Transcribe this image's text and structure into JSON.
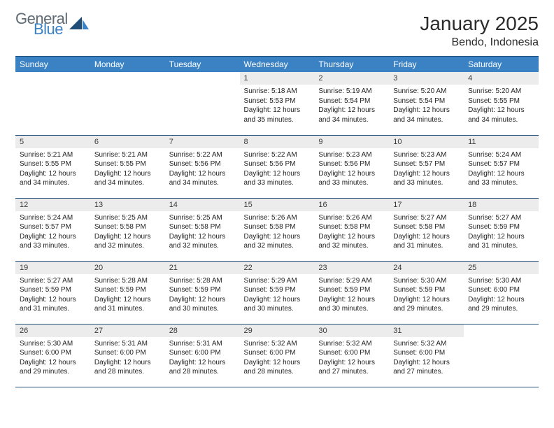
{
  "brand": {
    "part1": "General",
    "part2": "Blue"
  },
  "title": "January 2025",
  "location": "Bendo, Indonesia",
  "colors": {
    "header_bg": "#3b82c4",
    "header_border": "#1f4e79",
    "daynum_bg": "#ececec",
    "text": "#222222",
    "brand_gray": "#5f6a72",
    "brand_blue": "#3b82c4"
  },
  "dayHeaders": [
    "Sunday",
    "Monday",
    "Tuesday",
    "Wednesday",
    "Thursday",
    "Friday",
    "Saturday"
  ],
  "weeks": [
    [
      {
        "n": "",
        "sr": "",
        "ss": "",
        "dl": ""
      },
      {
        "n": "",
        "sr": "",
        "ss": "",
        "dl": ""
      },
      {
        "n": "",
        "sr": "",
        "ss": "",
        "dl": ""
      },
      {
        "n": "1",
        "sr": "5:18 AM",
        "ss": "5:53 PM",
        "dl": "12 hours and 35 minutes."
      },
      {
        "n": "2",
        "sr": "5:19 AM",
        "ss": "5:54 PM",
        "dl": "12 hours and 34 minutes."
      },
      {
        "n": "3",
        "sr": "5:20 AM",
        "ss": "5:54 PM",
        "dl": "12 hours and 34 minutes."
      },
      {
        "n": "4",
        "sr": "5:20 AM",
        "ss": "5:55 PM",
        "dl": "12 hours and 34 minutes."
      }
    ],
    [
      {
        "n": "5",
        "sr": "5:21 AM",
        "ss": "5:55 PM",
        "dl": "12 hours and 34 minutes."
      },
      {
        "n": "6",
        "sr": "5:21 AM",
        "ss": "5:55 PM",
        "dl": "12 hours and 34 minutes."
      },
      {
        "n": "7",
        "sr": "5:22 AM",
        "ss": "5:56 PM",
        "dl": "12 hours and 34 minutes."
      },
      {
        "n": "8",
        "sr": "5:22 AM",
        "ss": "5:56 PM",
        "dl": "12 hours and 33 minutes."
      },
      {
        "n": "9",
        "sr": "5:23 AM",
        "ss": "5:56 PM",
        "dl": "12 hours and 33 minutes."
      },
      {
        "n": "10",
        "sr": "5:23 AM",
        "ss": "5:57 PM",
        "dl": "12 hours and 33 minutes."
      },
      {
        "n": "11",
        "sr": "5:24 AM",
        "ss": "5:57 PM",
        "dl": "12 hours and 33 minutes."
      }
    ],
    [
      {
        "n": "12",
        "sr": "5:24 AM",
        "ss": "5:57 PM",
        "dl": "12 hours and 33 minutes."
      },
      {
        "n": "13",
        "sr": "5:25 AM",
        "ss": "5:58 PM",
        "dl": "12 hours and 32 minutes."
      },
      {
        "n": "14",
        "sr": "5:25 AM",
        "ss": "5:58 PM",
        "dl": "12 hours and 32 minutes."
      },
      {
        "n": "15",
        "sr": "5:26 AM",
        "ss": "5:58 PM",
        "dl": "12 hours and 32 minutes."
      },
      {
        "n": "16",
        "sr": "5:26 AM",
        "ss": "5:58 PM",
        "dl": "12 hours and 32 minutes."
      },
      {
        "n": "17",
        "sr": "5:27 AM",
        "ss": "5:58 PM",
        "dl": "12 hours and 31 minutes."
      },
      {
        "n": "18",
        "sr": "5:27 AM",
        "ss": "5:59 PM",
        "dl": "12 hours and 31 minutes."
      }
    ],
    [
      {
        "n": "19",
        "sr": "5:27 AM",
        "ss": "5:59 PM",
        "dl": "12 hours and 31 minutes."
      },
      {
        "n": "20",
        "sr": "5:28 AM",
        "ss": "5:59 PM",
        "dl": "12 hours and 31 minutes."
      },
      {
        "n": "21",
        "sr": "5:28 AM",
        "ss": "5:59 PM",
        "dl": "12 hours and 30 minutes."
      },
      {
        "n": "22",
        "sr": "5:29 AM",
        "ss": "5:59 PM",
        "dl": "12 hours and 30 minutes."
      },
      {
        "n": "23",
        "sr": "5:29 AM",
        "ss": "5:59 PM",
        "dl": "12 hours and 30 minutes."
      },
      {
        "n": "24",
        "sr": "5:30 AM",
        "ss": "5:59 PM",
        "dl": "12 hours and 29 minutes."
      },
      {
        "n": "25",
        "sr": "5:30 AM",
        "ss": "6:00 PM",
        "dl": "12 hours and 29 minutes."
      }
    ],
    [
      {
        "n": "26",
        "sr": "5:30 AM",
        "ss": "6:00 PM",
        "dl": "12 hours and 29 minutes."
      },
      {
        "n": "27",
        "sr": "5:31 AM",
        "ss": "6:00 PM",
        "dl": "12 hours and 28 minutes."
      },
      {
        "n": "28",
        "sr": "5:31 AM",
        "ss": "6:00 PM",
        "dl": "12 hours and 28 minutes."
      },
      {
        "n": "29",
        "sr": "5:32 AM",
        "ss": "6:00 PM",
        "dl": "12 hours and 28 minutes."
      },
      {
        "n": "30",
        "sr": "5:32 AM",
        "ss": "6:00 PM",
        "dl": "12 hours and 27 minutes."
      },
      {
        "n": "31",
        "sr": "5:32 AM",
        "ss": "6:00 PM",
        "dl": "12 hours and 27 minutes."
      },
      {
        "n": "",
        "sr": "",
        "ss": "",
        "dl": ""
      }
    ]
  ],
  "labels": {
    "sunrise": "Sunrise: ",
    "sunset": "Sunset: ",
    "daylight": "Daylight: "
  }
}
